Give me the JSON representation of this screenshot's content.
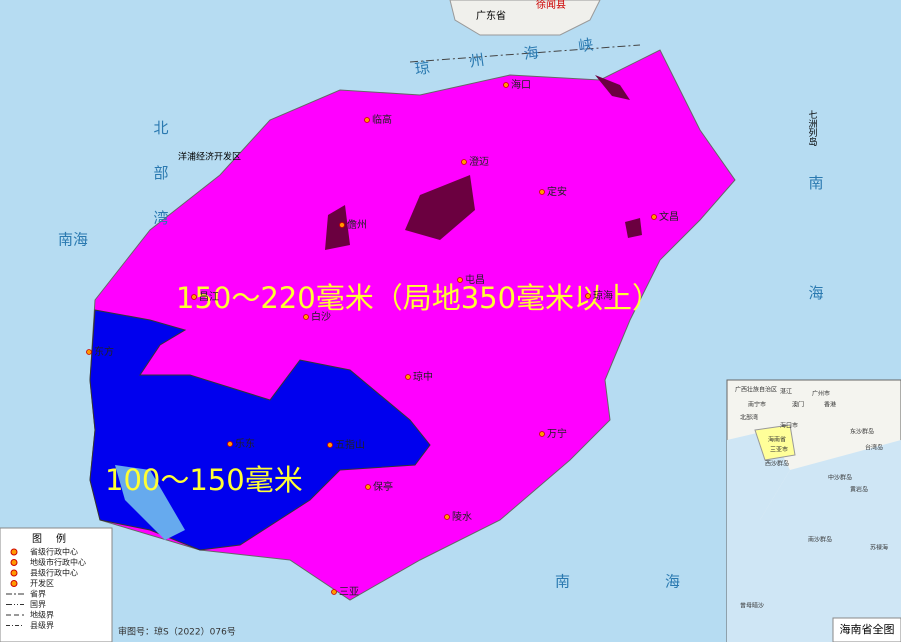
{
  "map": {
    "rainfall_zones": [
      {
        "label": "150～220毫米（局地350毫米以上）"
      },
      {
        "label": "100～150毫米"
      }
    ],
    "region_labels": [
      "广东省",
      "徐闻县",
      "七洲列岛",
      "洋浦经济开发区"
    ],
    "sea_labels": [
      "北部湾",
      "琼州海峡",
      "南海",
      "南海",
      "南海"
    ],
    "cities": [
      "海口",
      "临高",
      "澄迈",
      "定安",
      "儋州",
      "文昌",
      "屯昌",
      "琼海",
      "白沙",
      "昌江",
      "东方",
      "琼中",
      "乐东",
      "五指山",
      "万宁",
      "保亭",
      "陵水",
      "三亚"
    ],
    "legend": {
      "title": "图例",
      "items": [
        "省级行政中心",
        "地级市行政中心",
        "县级行政中心",
        "开发区",
        "省界",
        "国界",
        "地级界",
        "县级界"
      ]
    },
    "approval_number": "审图号：琼S（2022）076号",
    "inset": {
      "title": "海南省全图",
      "labels": [
        "广西壮族自治区",
        "南宁市",
        "湛江",
        "澳门",
        "广州市",
        "香港",
        "北部湾",
        "海口市",
        "海南省",
        "三亚市",
        "西沙群岛",
        "东沙群岛",
        "中沙群岛",
        "黄岩岛",
        "台湾岛",
        "南沙群岛",
        "苏禄海",
        "曾母暗沙"
      ]
    }
  }
}
